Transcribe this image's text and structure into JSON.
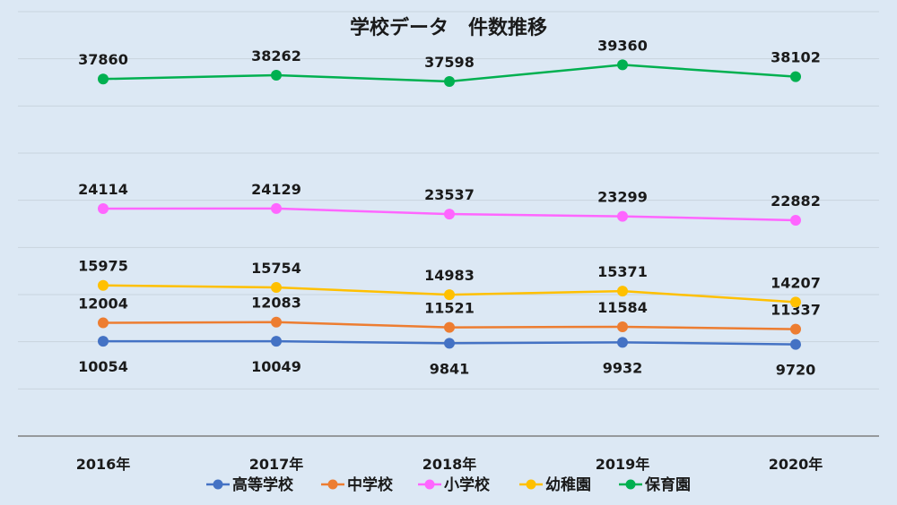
{
  "chart_data": {
    "type": "line",
    "title": "学校データ　件数推移",
    "categories": [
      "2016年",
      "2017年",
      "2018年",
      "2019年",
      "2020年"
    ],
    "ylim": [
      0,
      45000
    ],
    "grid": true,
    "legend_position": "bottom",
    "series": [
      {
        "name": "高等学校",
        "color": "#4472c4",
        "values": [
          10054,
          10049,
          9841,
          9932,
          9720
        ]
      },
      {
        "name": "中学校",
        "color": "#ed7d31",
        "values": [
          12004,
          12083,
          11521,
          11584,
          11337
        ]
      },
      {
        "name": "小学校",
        "color": "#ff66ff",
        "values": [
          24114,
          24129,
          23537,
          23299,
          22882
        ]
      },
      {
        "name": "幼稚園",
        "color": "#ffc000",
        "values": [
          15975,
          15754,
          14983,
          15371,
          14207
        ]
      },
      {
        "name": "保育園",
        "color": "#00b050",
        "values": [
          37860,
          38262,
          37598,
          39360,
          38102
        ]
      }
    ]
  }
}
